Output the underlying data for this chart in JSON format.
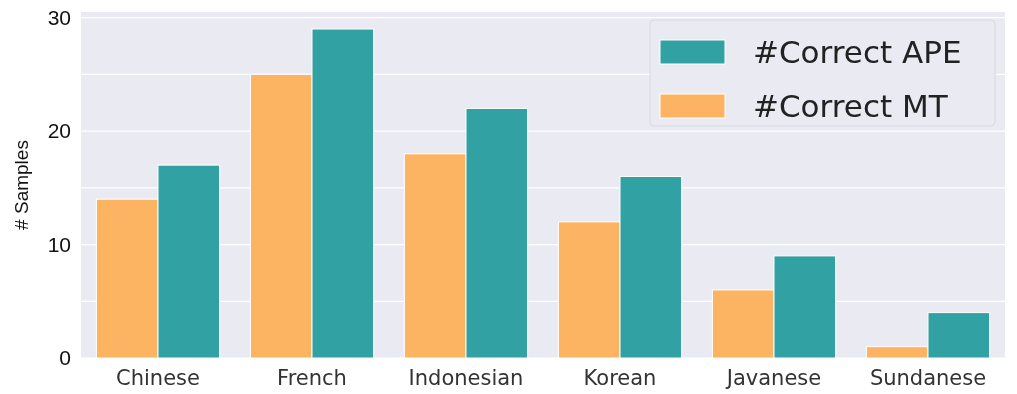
{
  "chart_data": {
    "type": "bar",
    "ylabel": "# Samples",
    "categories": [
      "Chinese",
      "French",
      "Indonesian",
      "Korean",
      "Javanese",
      "Sundanese"
    ],
    "series": [
      {
        "name": "#Correct MT",
        "color": "#fdb462",
        "values": [
          14,
          25,
          18,
          12,
          6,
          1
        ]
      },
      {
        "name": "#Correct APE",
        "color": "#31a1a4",
        "values": [
          17,
          29,
          22,
          16,
          9,
          4
        ]
      }
    ],
    "ylim": [
      0,
      30.5
    ],
    "yticks": [
      0,
      {
        "value": 5,
        "label": null
      },
      10,
      {
        "value": 15,
        "label": null
      },
      20,
      {
        "value": 25,
        "label": null
      },
      30
    ],
    "grid": "y",
    "legend": "top right"
  }
}
